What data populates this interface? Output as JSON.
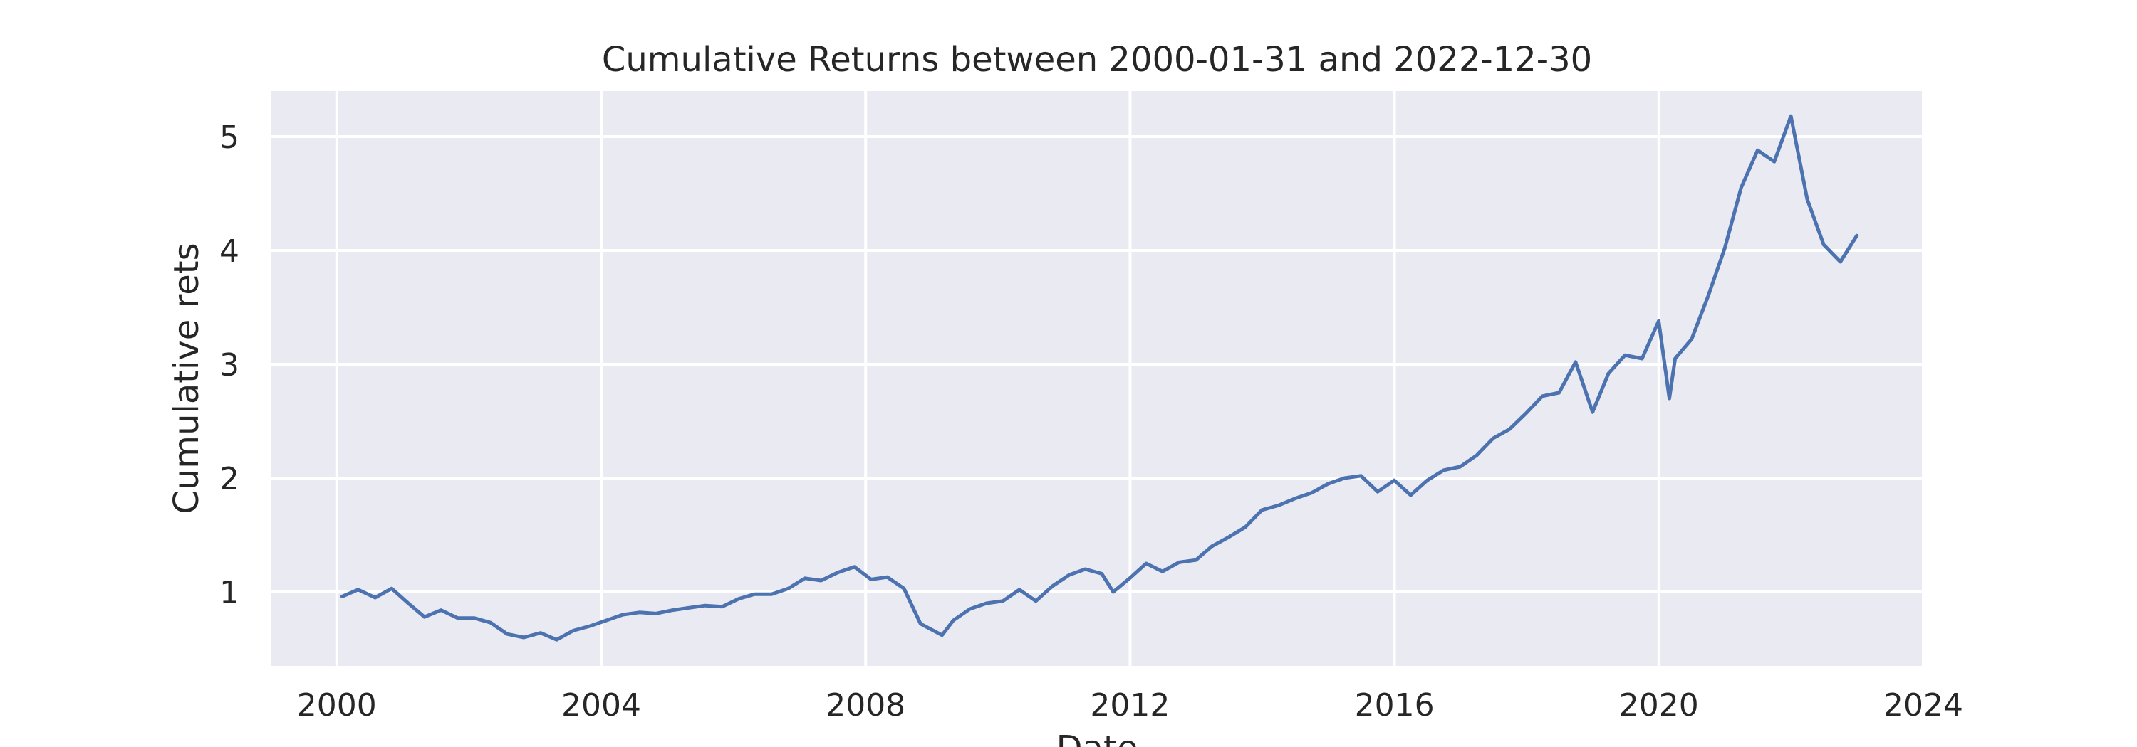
{
  "chart_data": {
    "type": "line",
    "title": "Cumulative Returns between 2000-01-31 and 2022-12-30",
    "xlabel": "Date",
    "ylabel": "Cumulative rets",
    "x_ticks": [
      "2000",
      "2004",
      "2008",
      "2012",
      "2016",
      "2020",
      "2024"
    ],
    "y_ticks": [
      1,
      2,
      3,
      4,
      5
    ],
    "xlim": [
      "1999-01-01",
      "2024-01-01"
    ],
    "ylim": [
      0.35,
      5.4
    ],
    "grid": true,
    "background_color": "#eaeaf2",
    "grid_color": "#ffffff",
    "series": [
      {
        "color": "#4c72b0",
        "x": [
          "2000-01-31",
          "2000-04-28",
          "2000-07-31",
          "2000-10-31",
          "2001-01-31",
          "2001-04-30",
          "2001-07-31",
          "2001-10-31",
          "2002-01-31",
          "2002-04-30",
          "2002-07-31",
          "2002-10-31",
          "2003-01-31",
          "2003-04-30",
          "2003-07-31",
          "2003-10-31",
          "2004-01-30",
          "2004-04-30",
          "2004-07-30",
          "2004-10-29",
          "2005-01-31",
          "2005-04-29",
          "2005-07-29",
          "2005-10-31",
          "2006-01-31",
          "2006-04-28",
          "2006-07-31",
          "2006-10-31",
          "2007-01-31",
          "2007-04-30",
          "2007-07-31",
          "2007-10-31",
          "2008-01-31",
          "2008-04-30",
          "2008-07-31",
          "2008-10-31",
          "2009-02-27",
          "2009-04-30",
          "2009-07-31",
          "2009-10-30",
          "2010-01-29",
          "2010-04-30",
          "2010-07-30",
          "2010-10-29",
          "2011-01-31",
          "2011-04-29",
          "2011-07-29",
          "2011-09-30",
          "2011-12-30",
          "2012-03-30",
          "2012-06-29",
          "2012-09-28",
          "2012-12-31",
          "2013-03-28",
          "2013-06-28",
          "2013-09-30",
          "2013-12-31",
          "2014-03-31",
          "2014-06-30",
          "2014-09-30",
          "2014-12-31",
          "2015-03-31",
          "2015-06-30",
          "2015-09-30",
          "2015-12-31",
          "2016-03-31",
          "2016-06-30",
          "2016-09-30",
          "2016-12-30",
          "2017-03-31",
          "2017-06-30",
          "2017-09-29",
          "2017-12-29",
          "2018-03-29",
          "2018-06-29",
          "2018-09-28",
          "2018-12-31",
          "2019-03-29",
          "2019-06-28",
          "2019-09-30",
          "2019-12-31",
          "2020-02-28",
          "2020-03-31",
          "2020-06-30",
          "2020-09-30",
          "2020-12-31",
          "2021-03-31",
          "2021-06-30",
          "2021-09-30",
          "2021-12-31",
          "2022-03-31",
          "2022-06-30",
          "2022-09-30",
          "2022-12-30"
        ],
        "values": [
          0.96,
          1.02,
          0.95,
          1.03,
          0.9,
          0.78,
          0.84,
          0.77,
          0.77,
          0.73,
          0.63,
          0.6,
          0.64,
          0.58,
          0.66,
          0.7,
          0.75,
          0.8,
          0.82,
          0.81,
          0.84,
          0.86,
          0.88,
          0.87,
          0.94,
          0.98,
          0.98,
          1.03,
          1.12,
          1.1,
          1.17,
          1.22,
          1.11,
          1.13,
          1.03,
          0.72,
          0.62,
          0.75,
          0.85,
          0.9,
          0.92,
          1.02,
          0.92,
          1.05,
          1.15,
          1.2,
          1.16,
          1.0,
          1.12,
          1.25,
          1.18,
          1.26,
          1.28,
          1.4,
          1.48,
          1.57,
          1.72,
          1.76,
          1.82,
          1.87,
          1.95,
          2.0,
          2.02,
          1.88,
          1.98,
          1.85,
          1.98,
          2.07,
          2.1,
          2.2,
          2.35,
          2.43,
          2.57,
          2.72,
          2.75,
          3.02,
          2.58,
          2.92,
          3.08,
          3.05,
          3.38,
          2.7,
          3.05,
          3.22,
          3.6,
          4.02,
          4.55,
          4.88,
          4.78,
          5.18,
          4.45,
          4.05,
          3.9,
          4.13
        ]
      }
    ]
  }
}
